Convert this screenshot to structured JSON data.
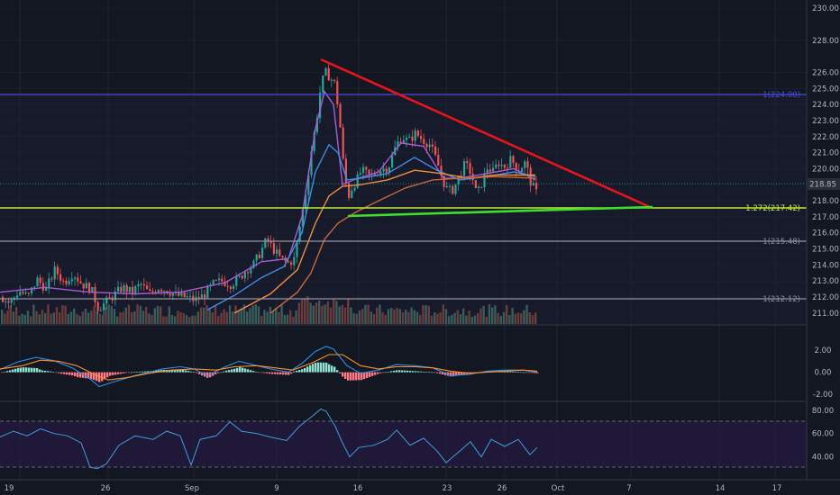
{
  "colors": {
    "background": "#131722",
    "pane_bg": "#161a2b",
    "grid": "#1f2433",
    "divider": "#363a45",
    "axis_text": "#b2b5be",
    "bull": "#26a69a",
    "bear": "#ef5350",
    "upper_band": "#4b4bd8",
    "fib_1272": "#c0ec3a",
    "fib_1": "#9598a1",
    "fib_label_1": "#8a8d96",
    "price_tag": "#2a2e39",
    "resistance": "#e8141c",
    "support": "#3ee02a",
    "ma_fast": "#ad5ad6",
    "ma_mid": "#3f8fe0",
    "ma_slow": "#ef8f3c",
    "ma_long": "#c8663c",
    "macd_line": "#2f8fe8",
    "signal_line": "#ff8f2a",
    "hist_pos": "#8fe0d0",
    "hist_neg": "#ff7a85",
    "rsi_line": "#3f9fd8",
    "rsi_band": "#1f1838",
    "volume_up": "#3a5c5a",
    "volume_down": "#6a3c3c"
  },
  "price_axis": {
    "labels": [
      "230.00",
      "228.00",
      "226.00",
      "225.00",
      "224.00",
      "223.00",
      "222.00",
      "221.00",
      "220.00",
      "219.00",
      "218.00",
      "217.00",
      "216.00",
      "215.00",
      "214.00",
      "213.00",
      "212.00",
      "211.00"
    ],
    "current_price": "218.85"
  },
  "macd_axis": {
    "labels": [
      "2.00",
      "0.00",
      "-2.00"
    ]
  },
  "rsi_axis": {
    "labels": [
      "80.00",
      "60.00",
      "40.00"
    ]
  },
  "time_axis": {
    "labels": [
      "19",
      "26",
      "Sep",
      "9",
      "16",
      "23",
      "26",
      "Oct",
      "7",
      "14",
      "17"
    ]
  },
  "levels": {
    "upper": {
      "label": "1(224.00)"
    },
    "fib_1272": {
      "label": "1.272(217.42)"
    },
    "fib_1a": {
      "label": "1(215.48)"
    },
    "fib_1b": {
      "label": "1(212.12)"
    }
  },
  "chart_data": {
    "type": "candlestick",
    "price_range": [
      210.6,
      230.4
    ],
    "macd_range": [
      -2.4,
      3.4
    ],
    "rsi_range": [
      22,
      86
    ],
    "price_path": [
      [
        0,
        212.0
      ],
      [
        10,
        211.6
      ],
      [
        20,
        212.4
      ],
      [
        30,
        212.0
      ],
      [
        40,
        213.1
      ],
      [
        50,
        212.5
      ],
      [
        60,
        213.7
      ],
      [
        70,
        212.9
      ],
      [
        80,
        213.5
      ],
      [
        90,
        212.8
      ],
      [
        100,
        212.5
      ],
      [
        108,
        211.3
      ],
      [
        115,
        211.6
      ],
      [
        125,
        212.1
      ],
      [
        135,
        212.6
      ],
      [
        145,
        212.3
      ],
      [
        155,
        212.8
      ],
      [
        165,
        212.2
      ],
      [
        175,
        212.6
      ],
      [
        185,
        212.4
      ],
      [
        195,
        212.1
      ],
      [
        205,
        212.0
      ],
      [
        215,
        211.8
      ],
      [
        225,
        212.1
      ],
      [
        235,
        212.8
      ],
      [
        245,
        213.0
      ],
      [
        255,
        212.8
      ],
      [
        265,
        213.2
      ],
      [
        272,
        213.7
      ],
      [
        280,
        214.0
      ],
      [
        288,
        214.8
      ],
      [
        295,
        215.6
      ],
      [
        302,
        215.0
      ],
      [
        310,
        214.4
      ],
      [
        318,
        214.1
      ],
      [
        325,
        214.3
      ],
      [
        332,
        216.5
      ],
      [
        338,
        218.5
      ],
      [
        344,
        221.0
      ],
      [
        350,
        223.0
      ],
      [
        355,
        225.2
      ],
      [
        360,
        226.0
      ],
      [
        365,
        225.7
      ],
      [
        370,
        225.3
      ],
      [
        375,
        223.5
      ],
      [
        380,
        220.2
      ],
      [
        385,
        218.2
      ],
      [
        390,
        218.9
      ],
      [
        395,
        219.3
      ],
      [
        400,
        219.9
      ],
      [
        410,
        219.5
      ],
      [
        420,
        219.9
      ],
      [
        430,
        220.1
      ],
      [
        438,
        221.4
      ],
      [
        445,
        222.0
      ],
      [
        452,
        221.7
      ],
      [
        460,
        222.2
      ],
      [
        468,
        221.8
      ],
      [
        476,
        221.5
      ],
      [
        484,
        220.4
      ],
      [
        490,
        219.3
      ],
      [
        496,
        218.6
      ],
      [
        502,
        218.7
      ],
      [
        508,
        219.5
      ],
      [
        515,
        220.3
      ],
      [
        522,
        219.7
      ],
      [
        528,
        218.3
      ],
      [
        534,
        219.2
      ],
      [
        540,
        220.1
      ],
      [
        546,
        219.8
      ],
      [
        552,
        220.4
      ],
      [
        558,
        220.1
      ],
      [
        566,
        220.6
      ],
      [
        574,
        219.9
      ],
      [
        582,
        220.4
      ],
      [
        588,
        219.1
      ],
      [
        594,
        218.5
      ]
    ],
    "moving_averages": [
      {
        "color_key": "ma_fast",
        "points": [
          [
            0,
            212.3
          ],
          [
            50,
            212.6
          ],
          [
            100,
            212.3
          ],
          [
            150,
            212.2
          ],
          [
            200,
            212.3
          ],
          [
            250,
            212.9
          ],
          [
            290,
            214.2
          ],
          [
            320,
            214.4
          ],
          [
            335,
            217.0
          ],
          [
            350,
            222.5
          ],
          [
            360,
            224.8
          ],
          [
            370,
            224.0
          ],
          [
            380,
            219.0
          ],
          [
            392,
            219.3
          ],
          [
            420,
            219.8
          ],
          [
            445,
            221.6
          ],
          [
            470,
            221.4
          ],
          [
            492,
            219.4
          ],
          [
            510,
            219.4
          ],
          [
            540,
            219.7
          ],
          [
            570,
            220.0
          ],
          [
            594,
            219.3
          ]
        ]
      },
      {
        "color_key": "ma_mid",
        "points": [
          [
            230,
            211.2
          ],
          [
            260,
            212.1
          ],
          [
            290,
            213.2
          ],
          [
            315,
            213.9
          ],
          [
            335,
            216.0
          ],
          [
            350,
            219.8
          ],
          [
            365,
            221.5
          ],
          [
            375,
            221.0
          ],
          [
            385,
            219.3
          ],
          [
            400,
            219.4
          ],
          [
            430,
            219.7
          ],
          [
            460,
            220.7
          ],
          [
            485,
            219.9
          ],
          [
            510,
            219.3
          ],
          [
            540,
            219.5
          ],
          [
            570,
            219.8
          ],
          [
            594,
            219.5
          ]
        ]
      },
      {
        "color_key": "ma_slow",
        "points": [
          [
            260,
            211.0
          ],
          [
            300,
            212.2
          ],
          [
            330,
            213.7
          ],
          [
            350,
            216.6
          ],
          [
            365,
            218.3
          ],
          [
            380,
            218.9
          ],
          [
            400,
            219.0
          ],
          [
            430,
            219.3
          ],
          [
            460,
            219.9
          ],
          [
            490,
            219.7
          ],
          [
            520,
            219.4
          ],
          [
            550,
            219.6
          ],
          [
            594,
            219.6
          ]
        ]
      },
      {
        "color_key": "ma_long",
        "points": [
          [
            300,
            211.0
          ],
          [
            330,
            212.3
          ],
          [
            345,
            213.5
          ],
          [
            360,
            215.6
          ],
          [
            375,
            216.6
          ],
          [
            395,
            217.3
          ],
          [
            420,
            218.0
          ],
          [
            450,
            218.8
          ],
          [
            480,
            219.3
          ],
          [
            510,
            219.4
          ],
          [
            550,
            219.5
          ],
          [
            594,
            219.4
          ]
        ]
      }
    ],
    "macd": {
      "macd_line": [
        [
          0,
          0.25
        ],
        [
          20,
          0.95
        ],
        [
          40,
          1.35
        ],
        [
          60,
          1.05
        ],
        [
          80,
          0.4
        ],
        [
          100,
          -0.6
        ],
        [
          110,
          -1.3
        ],
        [
          125,
          -0.9
        ],
        [
          150,
          -0.3
        ],
        [
          180,
          0.3
        ],
        [
          200,
          0.5
        ],
        [
          215,
          0.3
        ],
        [
          230,
          -0.3
        ],
        [
          250,
          0.5
        ],
        [
          265,
          1.0
        ],
        [
          285,
          0.6
        ],
        [
          300,
          0.3
        ],
        [
          320,
          0.0
        ],
        [
          335,
          0.8
        ],
        [
          350,
          1.9
        ],
        [
          362,
          2.35
        ],
        [
          370,
          2.1
        ],
        [
          385,
          0.6
        ],
        [
          400,
          -0.1
        ],
        [
          420,
          0.2
        ],
        [
          440,
          0.7
        ],
        [
          460,
          0.6
        ],
        [
          480,
          0.4
        ],
        [
          500,
          -0.3
        ],
        [
          520,
          -0.2
        ],
        [
          540,
          0.1
        ],
        [
          560,
          0.2
        ],
        [
          580,
          0.2
        ],
        [
          596,
          0.0
        ]
      ],
      "signal_line": [
        [
          0,
          0.3
        ],
        [
          25,
          0.6
        ],
        [
          45,
          1.1
        ],
        [
          65,
          1.0
        ],
        [
          85,
          0.6
        ],
        [
          105,
          -0.2
        ],
        [
          120,
          -0.7
        ],
        [
          140,
          -0.5
        ],
        [
          165,
          -0.1
        ],
        [
          190,
          0.2
        ],
        [
          215,
          0.3
        ],
        [
          240,
          0.2
        ],
        [
          260,
          0.5
        ],
        [
          285,
          0.6
        ],
        [
          305,
          0.4
        ],
        [
          325,
          0.2
        ],
        [
          345,
          0.8
        ],
        [
          365,
          1.6
        ],
        [
          380,
          1.6
        ],
        [
          400,
          0.6
        ],
        [
          420,
          0.3
        ],
        [
          440,
          0.5
        ],
        [
          460,
          0.5
        ],
        [
          480,
          0.4
        ],
        [
          500,
          0.1
        ],
        [
          520,
          -0.1
        ],
        [
          540,
          0.0
        ],
        [
          560,
          0.1
        ],
        [
          580,
          0.2
        ],
        [
          596,
          0.1
        ]
      ]
    },
    "rsi": [
      [
        0,
        57
      ],
      [
        15,
        62
      ],
      [
        30,
        58
      ],
      [
        45,
        64
      ],
      [
        60,
        60
      ],
      [
        75,
        58
      ],
      [
        90,
        52
      ],
      [
        100,
        31
      ],
      [
        108,
        30
      ],
      [
        118,
        34
      ],
      [
        132,
        50
      ],
      [
        150,
        58
      ],
      [
        170,
        55
      ],
      [
        185,
        62
      ],
      [
        200,
        58
      ],
      [
        212,
        33
      ],
      [
        222,
        55
      ],
      [
        240,
        58
      ],
      [
        255,
        70
      ],
      [
        268,
        62
      ],
      [
        285,
        60
      ],
      [
        300,
        57
      ],
      [
        318,
        54
      ],
      [
        332,
        66
      ],
      [
        345,
        74
      ],
      [
        356,
        81
      ],
      [
        362,
        79
      ],
      [
        372,
        66
      ],
      [
        380,
        52
      ],
      [
        388,
        40
      ],
      [
        398,
        48
      ],
      [
        415,
        50
      ],
      [
        430,
        55
      ],
      [
        440,
        63
      ],
      [
        455,
        50
      ],
      [
        470,
        56
      ],
      [
        485,
        45
      ],
      [
        495,
        35
      ],
      [
        510,
        45
      ],
      [
        522,
        53
      ],
      [
        534,
        40
      ],
      [
        545,
        55
      ],
      [
        560,
        49
      ],
      [
        575,
        55
      ],
      [
        588,
        42
      ],
      [
        596,
        48
      ]
    ],
    "series": [
      {
        "name": "",
        "role": "price"
      }
    ]
  }
}
